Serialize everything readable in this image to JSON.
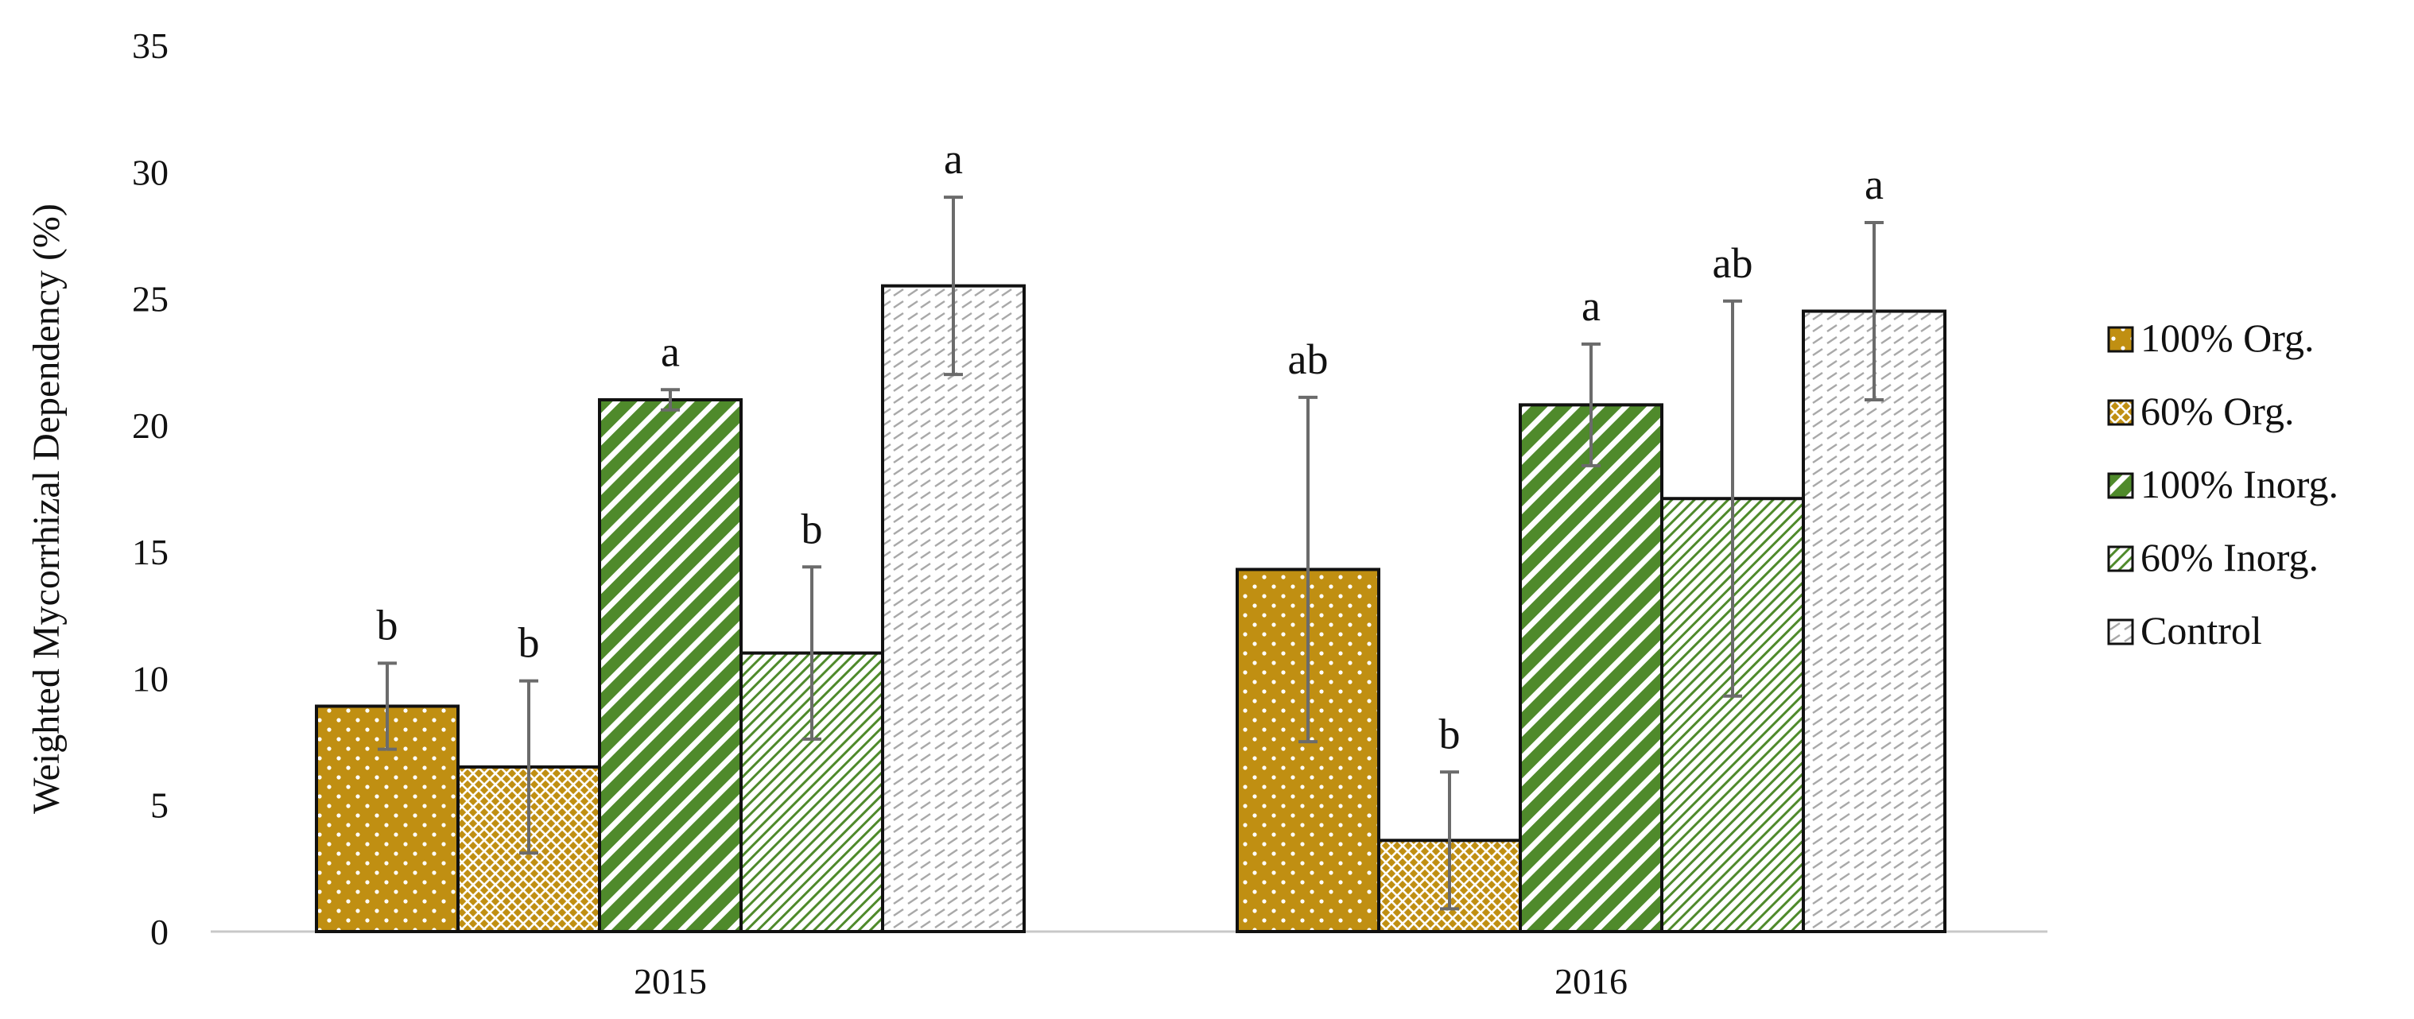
{
  "chart_data": {
    "type": "bar",
    "ylabel": "Weighted Mycorrhizal Dependency (%)",
    "xlabel": "",
    "ylim": [
      0,
      35
    ],
    "yticks": [
      0,
      5,
      10,
      15,
      20,
      25,
      30,
      35
    ],
    "grid": false,
    "legend_position": "right",
    "categories": [
      "2015",
      "2016"
    ],
    "series": [
      {
        "name": "100% Org.",
        "pattern": "dots",
        "fill": "#C08F12",
        "pattern_color": "#ffffff",
        "values": [
          8.9,
          14.3
        ],
        "errors": [
          1.7,
          6.8
        ],
        "significance": [
          "b",
          "ab"
        ]
      },
      {
        "name": "60% Org.",
        "pattern": "crosshatch",
        "fill": "#C08F12",
        "pattern_color": "#ffffff",
        "values": [
          6.5,
          3.6
        ],
        "errors": [
          3.4,
          2.7
        ],
        "significance": [
          "b",
          "b"
        ]
      },
      {
        "name": "100% Inorg.",
        "pattern": "wide-diagonal",
        "fill": "#4F8A2B",
        "pattern_color": "#ffffff",
        "values": [
          21.0,
          20.8
        ],
        "errors": [
          0.4,
          2.4
        ],
        "significance": [
          "a",
          "a"
        ]
      },
      {
        "name": "60% Inorg.",
        "pattern": "fine-diagonal",
        "fill": "#ffffff",
        "pattern_color": "#4F8A2B",
        "values": [
          11.0,
          17.1
        ],
        "errors": [
          3.4,
          7.8
        ],
        "significance": [
          "b",
          "ab"
        ]
      },
      {
        "name": "Control",
        "pattern": "dashed-diagonal",
        "fill": "#ffffff",
        "pattern_color": "#9a9a9a",
        "values": [
          25.5,
          24.5
        ],
        "errors": [
          3.5,
          3.5
        ],
        "significance": [
          "a",
          "a"
        ]
      }
    ]
  }
}
